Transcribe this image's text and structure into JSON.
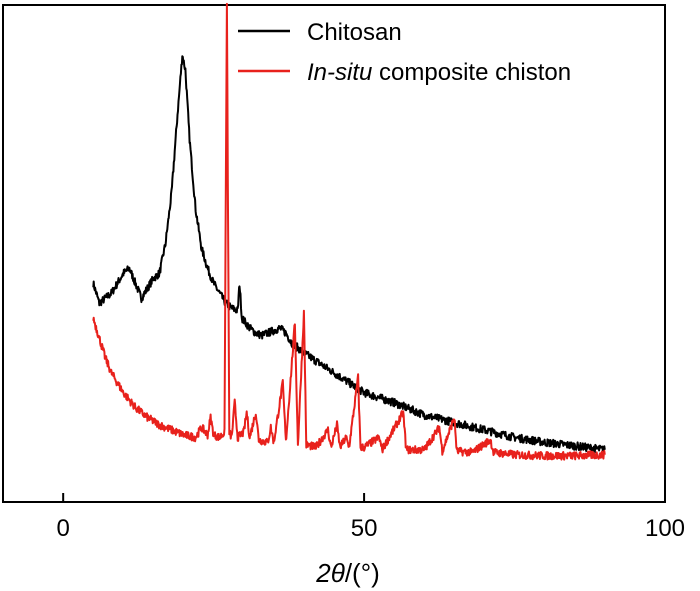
{
  "chart_data": {
    "type": "line",
    "title": "",
    "xlabel": "2θ/(°)",
    "xlabel_parts": {
      "lead": "2",
      "symbol": "θ",
      "unit": "/(°)"
    },
    "ylabel": "",
    "xlim": [
      -10,
      100
    ],
    "ylim": [
      0,
      100
    ],
    "xticks": [
      0,
      50,
      100
    ],
    "xtick_labels": [
      "0",
      "50",
      "100"
    ],
    "grid": false,
    "legend_position": "top-right",
    "series": [
      {
        "name": "Chitosan",
        "color": "#000000",
        "points": [
          [
            5,
            44
          ],
          [
            6,
            40
          ],
          [
            8,
            42
          ],
          [
            10,
            46
          ],
          [
            11,
            47
          ],
          [
            12,
            44
          ],
          [
            13,
            41
          ],
          [
            14,
            43
          ],
          [
            15,
            45
          ],
          [
            16,
            46
          ],
          [
            17,
            52
          ],
          [
            18,
            62
          ],
          [
            19,
            78
          ],
          [
            19.8,
            90
          ],
          [
            20.3,
            87
          ],
          [
            21,
            73
          ],
          [
            22,
            59
          ],
          [
            23,
            51
          ],
          [
            24,
            47
          ],
          [
            25,
            44
          ],
          [
            26,
            42
          ],
          [
            27,
            40
          ],
          [
            28,
            39
          ],
          [
            29,
            38.5
          ],
          [
            29.3,
            44
          ],
          [
            29.7,
            37
          ],
          [
            31,
            35
          ],
          [
            32,
            34
          ],
          [
            33,
            33.5
          ],
          [
            34,
            34
          ],
          [
            35,
            34.5
          ],
          [
            36,
            35
          ],
          [
            37,
            34
          ],
          [
            38,
            32
          ],
          [
            40,
            30
          ],
          [
            45,
            26
          ],
          [
            50,
            22
          ],
          [
            55,
            20
          ],
          [
            60,
            17.5
          ],
          [
            65,
            16
          ],
          [
            70,
            14.5
          ],
          [
            75,
            13
          ],
          [
            80,
            12
          ],
          [
            85,
            11.3
          ],
          [
            90,
            10.5
          ]
        ]
      },
      {
        "name": "In-situ composite chiston",
        "name_parts": {
          "italic": "In-situ",
          "rest": " composite chiston"
        },
        "color": "#e8211c",
        "points": [
          [
            5,
            37
          ],
          [
            6,
            33
          ],
          [
            7,
            29
          ],
          [
            8,
            26
          ],
          [
            10,
            22
          ],
          [
            12,
            19
          ],
          [
            14,
            17
          ],
          [
            16,
            15.5
          ],
          [
            18,
            14.5
          ],
          [
            20,
            13.5
          ],
          [
            22,
            13
          ],
          [
            23,
            15
          ],
          [
            24,
            13.5
          ],
          [
            24.5,
            17
          ],
          [
            25,
            13.5
          ],
          [
            26,
            13
          ],
          [
            26.8,
            14
          ],
          [
            27.2,
            100
          ],
          [
            27.6,
            14
          ],
          [
            28,
            13
          ],
          [
            28.5,
            20
          ],
          [
            29,
            13
          ],
          [
            30,
            14
          ],
          [
            30.5,
            18
          ],
          [
            31,
            13
          ],
          [
            32,
            18
          ],
          [
            32.5,
            12.5
          ],
          [
            34,
            12
          ],
          [
            34.5,
            15
          ],
          [
            35,
            12
          ],
          [
            36.5,
            24
          ],
          [
            37,
            12
          ],
          [
            38.5,
            36
          ],
          [
            39,
            11.5
          ],
          [
            40,
            38
          ],
          [
            40.4,
            11.5
          ],
          [
            42,
            11
          ],
          [
            44,
            14.5
          ],
          [
            44.5,
            11
          ],
          [
            45.5,
            15.5
          ],
          [
            46,
            11
          ],
          [
            47,
            13
          ],
          [
            47.5,
            11
          ],
          [
            49,
            25
          ],
          [
            49.4,
            11
          ],
          [
            50,
            11
          ],
          [
            52.5,
            13
          ],
          [
            53,
            10.5
          ],
          [
            56.5,
            18
          ],
          [
            57,
            10.5
          ],
          [
            60,
            10.5
          ],
          [
            62.5,
            15
          ],
          [
            63,
            10.3
          ],
          [
            65,
            17
          ],
          [
            65.4,
            10.2
          ],
          [
            68,
            10
          ],
          [
            71,
            12.5
          ],
          [
            71.5,
            10
          ],
          [
            75,
            9.5
          ],
          [
            80,
            9.3
          ],
          [
            85,
            9.3
          ],
          [
            90,
            9.5
          ]
        ]
      }
    ]
  }
}
